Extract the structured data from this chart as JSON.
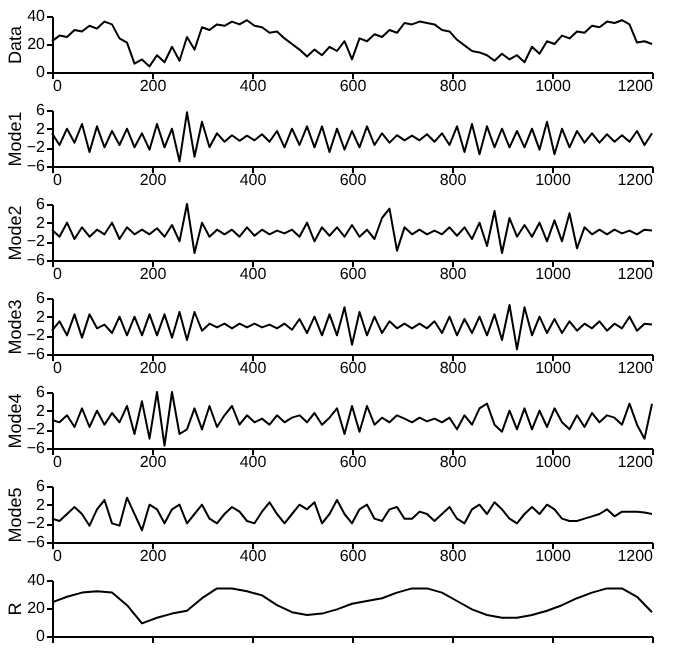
{
  "chart_data": [
    {
      "type": "line",
      "ylabel": "Data",
      "color": "#000000",
      "xlim": [
        0,
        1200
      ],
      "xticks": [
        0,
        200,
        400,
        600,
        800,
        1000,
        1200
      ],
      "ylim": [
        0,
        40
      ],
      "yticks": [
        0,
        20,
        40
      ],
      "x": [
        0,
        15,
        30,
        45,
        60,
        75,
        90,
        105,
        120,
        135,
        150,
        165,
        180,
        195,
        210,
        225,
        240,
        255,
        270,
        285,
        300,
        315,
        330,
        345,
        360,
        375,
        390,
        405,
        420,
        435,
        450,
        465,
        480,
        495,
        510,
        525,
        540,
        555,
        570,
        585,
        600,
        615,
        630,
        645,
        660,
        675,
        690,
        705,
        720,
        735,
        750,
        765,
        780,
        795,
        810,
        825,
        840,
        855,
        870,
        885,
        900,
        915,
        930,
        945,
        960,
        975,
        990,
        1005,
        1020,
        1035,
        1050,
        1065,
        1080,
        1095,
        1110,
        1125,
        1140,
        1155,
        1170,
        1185,
        1200
      ],
      "values": [
        22,
        26,
        25,
        30,
        29,
        33,
        31,
        36,
        34,
        24,
        21,
        6,
        9,
        4,
        12,
        7,
        18,
        8,
        25,
        16,
        32,
        30,
        34,
        33,
        36,
        34,
        37,
        33,
        32,
        28,
        29,
        24,
        20,
        16,
        11,
        16,
        12,
        18,
        15,
        22,
        9,
        24,
        22,
        27,
        25,
        30,
        28,
        35,
        34,
        36,
        35,
        34,
        30,
        29,
        23,
        19,
        15,
        14,
        12,
        8,
        13,
        9,
        12,
        7,
        18,
        13,
        22,
        20,
        26,
        24,
        29,
        28,
        33,
        32,
        36,
        35,
        37,
        34,
        21,
        22,
        20
      ]
    },
    {
      "type": "line",
      "ylabel": "Mode1",
      "color": "#000000",
      "xlim": [
        0,
        1200
      ],
      "xticks": [
        0,
        200,
        400,
        600,
        800,
        1000,
        1200
      ],
      "ylim": [
        -6,
        6
      ],
      "yticks": [
        -6,
        -2,
        2,
        6
      ],
      "x": [
        0,
        15,
        30,
        45,
        60,
        75,
        90,
        105,
        120,
        135,
        150,
        165,
        180,
        195,
        210,
        225,
        240,
        255,
        270,
        285,
        300,
        315,
        330,
        345,
        360,
        375,
        390,
        405,
        420,
        435,
        450,
        465,
        480,
        495,
        510,
        525,
        540,
        555,
        570,
        585,
        600,
        615,
        630,
        645,
        660,
        675,
        690,
        705,
        720,
        735,
        750,
        765,
        780,
        795,
        810,
        825,
        840,
        855,
        870,
        885,
        900,
        915,
        930,
        945,
        960,
        975,
        990,
        1005,
        1020,
        1035,
        1050,
        1065,
        1080,
        1095,
        1110,
        1125,
        1140,
        1155,
        1170,
        1185,
        1200
      ],
      "values": [
        1,
        -1.5,
        2,
        -1,
        3,
        -3,
        2.5,
        -2,
        1.5,
        -1.5,
        2,
        -2,
        1,
        -2.5,
        3,
        -2,
        2,
        -5,
        5.5,
        -4,
        3.5,
        -2,
        1,
        -0.8,
        0.6,
        -0.6,
        0.5,
        -0.5,
        0.8,
        -0.8,
        1.5,
        -2,
        2,
        -1.5,
        2.5,
        -2,
        2.5,
        -3,
        2,
        -2.5,
        1.5,
        -2,
        2.5,
        -1.5,
        1,
        -1,
        0.6,
        -0.5,
        0.5,
        -0.5,
        0.8,
        -0.8,
        1,
        -1.5,
        2.5,
        -3,
        3,
        -3.5,
        2.5,
        -2,
        2,
        -2,
        1.5,
        -2,
        2,
        -2.5,
        3.5,
        -3.5,
        2,
        -2,
        1.5,
        -1,
        1,
        -1,
        0.8,
        -0.8,
        0.6,
        -0.8,
        1.5,
        -1.5,
        1
      ]
    },
    {
      "type": "line",
      "ylabel": "Mode2",
      "color": "#000000",
      "xlim": [
        0,
        1200
      ],
      "xticks": [
        0,
        200,
        400,
        600,
        800,
        1000,
        1200
      ],
      "ylim": [
        -6,
        6
      ],
      "yticks": [
        -6,
        -2,
        2,
        6
      ],
      "x": [
        0,
        15,
        30,
        45,
        60,
        75,
        90,
        105,
        120,
        135,
        150,
        165,
        180,
        195,
        210,
        225,
        240,
        255,
        270,
        285,
        300,
        315,
        330,
        345,
        360,
        375,
        390,
        405,
        420,
        435,
        450,
        465,
        480,
        495,
        510,
        525,
        540,
        555,
        570,
        585,
        600,
        615,
        630,
        645,
        660,
        675,
        690,
        705,
        720,
        735,
        750,
        765,
        780,
        795,
        810,
        825,
        840,
        855,
        870,
        885,
        900,
        915,
        930,
        945,
        960,
        975,
        990,
        1005,
        1020,
        1035,
        1050,
        1065,
        1080,
        1095,
        1110,
        1125,
        1140,
        1155,
        1170,
        1185,
        1200
      ],
      "values": [
        0.5,
        -1,
        2,
        -1.5,
        1,
        -1,
        0.5,
        -0.5,
        2,
        -1.5,
        1,
        -0.5,
        0.5,
        -0.5,
        0.8,
        -1,
        1.5,
        -2,
        6,
        -4.5,
        2,
        -1,
        0.5,
        -0.5,
        0.5,
        -1,
        1,
        -0.8,
        0.5,
        -0.5,
        0.3,
        -0.3,
        0.5,
        -1,
        2,
        -2,
        1,
        -0.8,
        1,
        -1,
        1.5,
        -1,
        0.5,
        -1.5,
        3,
        5,
        -4,
        1,
        -0.5,
        0.5,
        -0.5,
        0.3,
        -0.5,
        1,
        -0.8,
        1,
        -1.5,
        2,
        -3,
        4.5,
        -4.5,
        3,
        -1,
        1.5,
        -1,
        2,
        -2,
        2.5,
        -2,
        4,
        -3.5,
        1,
        -0.5,
        0.5,
        -0.5,
        0.5,
        -0.3,
        0.3,
        -0.5,
        0.5,
        0.3
      ]
    },
    {
      "type": "line",
      "ylabel": "Mode3",
      "color": "#000000",
      "xlim": [
        0,
        1200
      ],
      "xticks": [
        0,
        200,
        400,
        600,
        800,
        1000,
        1200
      ],
      "ylim": [
        -6,
        6
      ],
      "yticks": [
        -6,
        -2,
        2,
        6
      ],
      "x": [
        0,
        15,
        30,
        45,
        60,
        75,
        90,
        105,
        120,
        135,
        150,
        165,
        180,
        195,
        210,
        225,
        240,
        255,
        270,
        285,
        300,
        315,
        330,
        345,
        360,
        375,
        390,
        405,
        420,
        435,
        450,
        465,
        480,
        495,
        510,
        525,
        540,
        555,
        570,
        585,
        600,
        615,
        630,
        645,
        660,
        675,
        690,
        705,
        720,
        735,
        750,
        765,
        780,
        795,
        810,
        825,
        840,
        855,
        870,
        885,
        900,
        915,
        930,
        945,
        960,
        975,
        990,
        1005,
        1020,
        1035,
        1050,
        1065,
        1080,
        1095,
        1110,
        1125,
        1140,
        1155,
        1170,
        1185,
        1200
      ],
      "values": [
        -1,
        1,
        -2,
        2.5,
        -2.5,
        2.5,
        -0.5,
        0.3,
        -1.5,
        2,
        -2,
        2,
        -2,
        2.5,
        -2,
        2.5,
        -2.5,
        3,
        -3,
        3,
        -1,
        0.5,
        -0.3,
        0.5,
        -0.5,
        0.5,
        -0.3,
        0.5,
        -0.3,
        0.3,
        -0.5,
        0.5,
        -0.8,
        1.5,
        -1.5,
        2,
        -2,
        2.5,
        -2,
        4,
        -4,
        3,
        -2,
        2,
        -1.5,
        1,
        -0.5,
        0.5,
        -0.5,
        0.5,
        -0.5,
        1,
        -1.5,
        2,
        -2,
        1.5,
        -1.5,
        2,
        -2,
        2.5,
        -3,
        4.5,
        -5,
        4,
        -2,
        2,
        -1.5,
        1.5,
        -1.5,
        1,
        -1,
        0.5,
        -0.5,
        1,
        -1,
        0.5,
        -0.5,
        2,
        -1,
        0.5,
        0.3
      ]
    },
    {
      "type": "line",
      "ylabel": "Mode4",
      "color": "#000000",
      "xlim": [
        0,
        1200
      ],
      "xticks": [
        0,
        200,
        400,
        600,
        800,
        1000,
        1200
      ],
      "ylim": [
        -6,
        6
      ],
      "yticks": [
        -6,
        -2,
        2,
        6
      ],
      "x": [
        0,
        15,
        30,
        45,
        60,
        75,
        90,
        105,
        120,
        135,
        150,
        165,
        180,
        195,
        210,
        225,
        240,
        255,
        270,
        285,
        300,
        315,
        330,
        345,
        360,
        375,
        390,
        405,
        420,
        435,
        450,
        465,
        480,
        495,
        510,
        525,
        540,
        555,
        570,
        585,
        600,
        615,
        630,
        645,
        660,
        675,
        690,
        705,
        720,
        735,
        750,
        765,
        780,
        795,
        810,
        825,
        840,
        855,
        870,
        885,
        900,
        915,
        930,
        945,
        960,
        975,
        990,
        1005,
        1020,
        1035,
        1050,
        1065,
        1080,
        1095,
        1110,
        1125,
        1140,
        1155,
        1170,
        1185,
        1200
      ],
      "values": [
        0,
        -0.5,
        1,
        -1.5,
        2.5,
        -1.5,
        2,
        -1,
        1.5,
        -0.5,
        3,
        -3,
        4,
        -4,
        6,
        -5.5,
        6,
        -3,
        -2,
        2.5,
        -2,
        3,
        -1.5,
        1,
        3,
        -1,
        1,
        -0.5,
        0.3,
        -1,
        1,
        -0.5,
        0.5,
        1,
        -0.5,
        1.5,
        -1,
        0.5,
        2.5,
        -3,
        3,
        -2.5,
        3,
        -1,
        0.5,
        -0.5,
        1,
        0.3,
        -0.5,
        0.5,
        -0.3,
        0.3,
        -0.5,
        0.5,
        -2,
        1,
        -1,
        2.5,
        3.5,
        -1,
        -2.5,
        2,
        -2,
        2.5,
        -2,
        2,
        -1.5,
        2.5,
        -0.5,
        -2,
        1,
        -1.5,
        1.5,
        -0.5,
        1,
        0.5,
        -1,
        3.5,
        -1,
        -4,
        3.5
      ]
    },
    {
      "type": "line",
      "ylabel": "Mode5",
      "color": "#000000",
      "xlim": [
        0,
        1200
      ],
      "xticks": [
        0,
        200,
        400,
        600,
        800,
        1000,
        1200
      ],
      "ylim": [
        -6,
        6
      ],
      "yticks": [
        -6,
        -2,
        2,
        6
      ],
      "x": [
        0,
        15,
        30,
        45,
        60,
        75,
        90,
        105,
        120,
        135,
        150,
        165,
        180,
        195,
        210,
        225,
        240,
        255,
        270,
        285,
        300,
        315,
        330,
        345,
        360,
        375,
        390,
        405,
        420,
        435,
        450,
        465,
        480,
        495,
        510,
        525,
        540,
        555,
        570,
        585,
        600,
        615,
        630,
        645,
        660,
        675,
        690,
        705,
        720,
        735,
        750,
        765,
        780,
        795,
        810,
        825,
        840,
        855,
        870,
        885,
        900,
        915,
        930,
        945,
        960,
        975,
        990,
        1005,
        1020,
        1035,
        1050,
        1065,
        1080,
        1095,
        1110,
        1125,
        1140,
        1155,
        1170,
        1185,
        1200
      ],
      "values": [
        -1,
        -1.5,
        0,
        1.5,
        0,
        -2.5,
        1,
        3,
        -2,
        -2.5,
        3.5,
        0,
        -3.5,
        2,
        1,
        -2,
        1,
        2,
        -2,
        0,
        2,
        -1,
        -2,
        0,
        1.5,
        0.5,
        -1.5,
        -2,
        0.5,
        2.5,
        0,
        -2,
        0,
        2,
        1,
        2.5,
        -2,
        0,
        3,
        0,
        -2,
        1,
        2,
        -1,
        -1.5,
        1,
        1.5,
        -1,
        -1,
        0.5,
        0,
        -1.5,
        0,
        1.5,
        -1,
        -2,
        1,
        2,
        0,
        2.5,
        1,
        -1,
        -2,
        0,
        1.5,
        0,
        2,
        1,
        -1,
        -1.5,
        -1.5,
        -1,
        -0.5,
        0,
        1,
        -0.5,
        0.5,
        0.5,
        0.5,
        0.3,
        0
      ]
    },
    {
      "type": "line",
      "ylabel": "R",
      "color": "#000000",
      "xlim": [
        0,
        1200
      ],
      "xticks": [
        0,
        200,
        400,
        600,
        800,
        1000,
        1200
      ],
      "ylim": [
        0,
        40
      ],
      "yticks": [
        0,
        20,
        40
      ],
      "tick_labels": "y",
      "x": [
        0,
        30,
        60,
        90,
        120,
        150,
        180,
        210,
        240,
        270,
        300,
        330,
        360,
        390,
        420,
        450,
        480,
        510,
        540,
        570,
        600,
        630,
        660,
        690,
        720,
        750,
        780,
        810,
        840,
        870,
        900,
        930,
        960,
        990,
        1020,
        1050,
        1080,
        1110,
        1140,
        1170,
        1200
      ],
      "values": [
        24,
        28,
        31,
        32,
        31,
        22,
        9,
        13,
        16,
        18,
        27,
        34,
        34,
        32,
        29,
        22,
        17,
        15,
        16,
        19,
        23,
        25,
        27,
        31,
        34,
        34,
        31,
        25,
        19,
        15,
        13,
        13,
        15,
        18,
        22,
        27,
        31,
        34,
        34,
        28,
        17
      ]
    }
  ]
}
